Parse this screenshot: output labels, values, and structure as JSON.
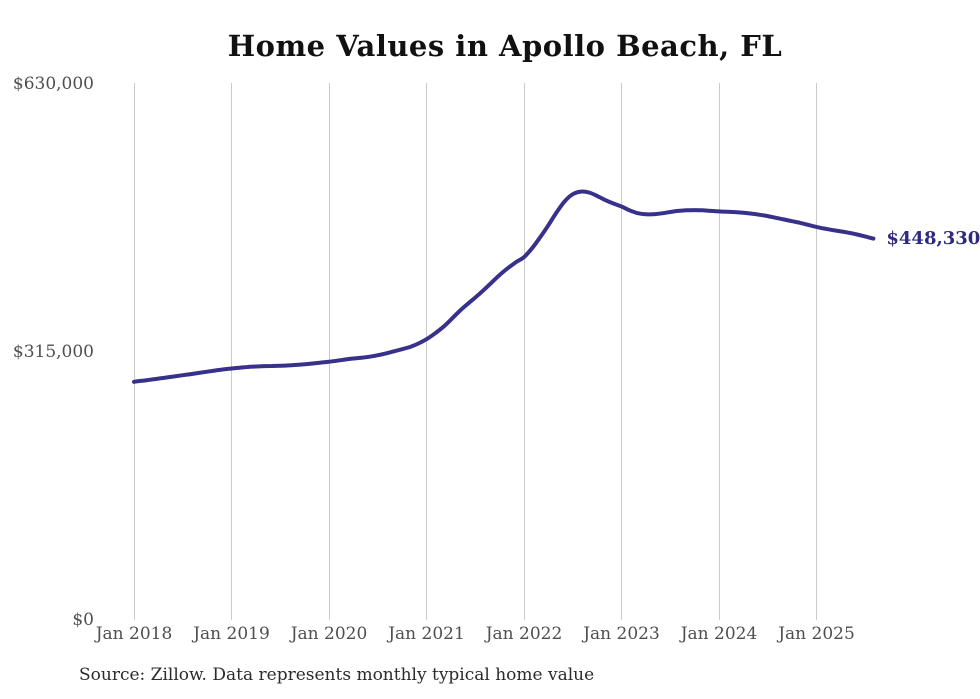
{
  "page": {
    "background": "#ffffff"
  },
  "chart_data": {
    "type": "line",
    "title": "Home Values in Apollo Beach, FL",
    "xlabel": "",
    "ylabel": "",
    "x_tick_labels": [
      "Jan 2018",
      "Jan 2019",
      "Jan 2020",
      "Jan 2021",
      "Jan 2022",
      "Jan 2023",
      "Jan 2024",
      "Jan 2025"
    ],
    "y_ticks": [
      0,
      315000,
      630000
    ],
    "y_tick_labels": [
      "$0",
      "$315,000",
      "$630,000"
    ],
    "ylim": [
      0,
      630000
    ],
    "grid": "vertical-only",
    "legend": "none",
    "frequency": "monthly",
    "start_month": "Jan 2018",
    "end_month": "Aug 2025",
    "end_label": "$448,330",
    "end_value": 448330,
    "line_color": "#37318c",
    "end_label_color": "#2e2a80",
    "grid_color": "#cbcbcb",
    "series": [
      {
        "name": "Typical home value",
        "values": [
          280000,
          281200,
          282400,
          283700,
          285000,
          286300,
          287700,
          289000,
          290400,
          291800,
          293200,
          294500,
          295600,
          296600,
          297400,
          298000,
          298400,
          298600,
          298800,
          299200,
          299800,
          300600,
          301500,
          302500,
          303500,
          304800,
          306200,
          307400,
          308300,
          309500,
          311200,
          313400,
          315800,
          318300,
          321000,
          325000,
          330000,
          336500,
          344000,
          353000,
          362500,
          371000,
          379000,
          387500,
          396500,
          405500,
          413500,
          420500,
          426500,
          437000,
          450000,
          464000,
          479000,
          492000,
          500500,
          503500,
          502500,
          498500,
          493500,
          489500,
          486000,
          481500,
          478200,
          476800,
          477000,
          478000,
          479500,
          480800,
          481500,
          481800,
          481500,
          480800,
          480200,
          479800,
          479400,
          478700,
          477700,
          476300,
          474700,
          472700,
          470700,
          468700,
          466700,
          464400,
          462000,
          460000,
          458300,
          456800,
          455100,
          453100,
          450700,
          448330
        ]
      }
    ]
  },
  "footer": {
    "source_note": "Source: Zillow. Data represents monthly typical home value"
  }
}
